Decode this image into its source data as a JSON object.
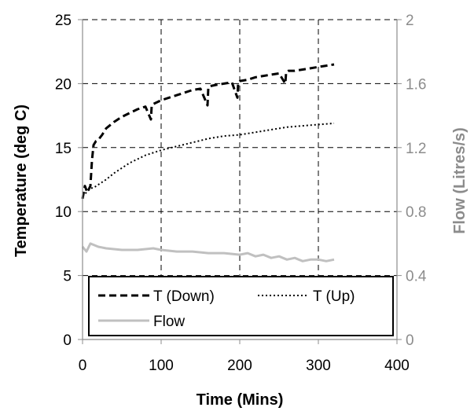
{
  "chart_data": {
    "type": "line",
    "xlabel": "Time (Mins)",
    "ylabel": "Temperature (deg C)",
    "y2label": "Flow (Litres/s)",
    "xlim": [
      0,
      400
    ],
    "ylim": [
      0,
      25
    ],
    "y2lim": [
      0,
      2
    ],
    "x_ticks": [
      "0",
      "100",
      "200",
      "300",
      "400"
    ],
    "y_ticks": [
      "0",
      "5",
      "10",
      "15",
      "20",
      "25"
    ],
    "y2_ticks": [
      "0",
      "0.4",
      "0.8",
      "1.2",
      "1.6",
      "2"
    ],
    "grid": true,
    "legend_position": "bottom-inside",
    "colors": {
      "t_down": "#000000",
      "t_up": "#000000",
      "flow": "#c0c0c0",
      "right_axis": "#8c8c8c"
    },
    "series": [
      {
        "name": "T (Down)",
        "axis": "left",
        "style": "dashed",
        "x": [
          0,
          3,
          6,
          10,
          12,
          14,
          17,
          20,
          25,
          30,
          40,
          50,
          60,
          70,
          80,
          87,
          88,
          90,
          100,
          110,
          120,
          130,
          140,
          150,
          159,
          160,
          162,
          170,
          180,
          190,
          197,
          198,
          200,
          210,
          220,
          230,
          240,
          250,
          258,
          259,
          262,
          270,
          280,
          290,
          300,
          310,
          320
        ],
        "y": [
          11.0,
          12.0,
          11.5,
          12.0,
          14.0,
          15.2,
          15.5,
          15.6,
          16.0,
          16.5,
          17.0,
          17.4,
          17.7,
          18.0,
          18.2,
          17.2,
          18.3,
          18.4,
          18.7,
          18.9,
          19.1,
          19.3,
          19.5,
          19.6,
          18.3,
          19.7,
          19.8,
          19.9,
          20.0,
          20.1,
          18.9,
          20.1,
          20.2,
          20.3,
          20.5,
          20.6,
          20.7,
          20.8,
          20.0,
          20.9,
          21.0,
          21.0,
          21.1,
          21.2,
          21.3,
          21.4,
          21.5
        ]
      },
      {
        "name": "T (Up)",
        "axis": "left",
        "style": "dotted",
        "x": [
          0,
          5,
          10,
          15,
          20,
          30,
          40,
          50,
          60,
          80,
          100,
          120,
          140,
          160,
          180,
          200,
          220,
          240,
          260,
          280,
          300,
          320
        ],
        "y": [
          11.2,
          11.5,
          11.8,
          11.9,
          12.1,
          12.5,
          13.0,
          13.4,
          13.8,
          14.4,
          14.8,
          15.1,
          15.4,
          15.7,
          15.9,
          16.0,
          16.2,
          16.4,
          16.6,
          16.7,
          16.8,
          16.9
        ]
      },
      {
        "name": "Flow",
        "axis": "right",
        "style": "solid",
        "x": [
          0,
          5,
          10,
          20,
          30,
          50,
          70,
          90,
          100,
          120,
          140,
          160,
          180,
          200,
          210,
          220,
          230,
          240,
          250,
          260,
          270,
          280,
          290,
          300,
          310,
          320
        ],
        "y": [
          0.58,
          0.55,
          0.6,
          0.58,
          0.57,
          0.56,
          0.56,
          0.57,
          0.56,
          0.55,
          0.55,
          0.54,
          0.54,
          0.53,
          0.54,
          0.52,
          0.53,
          0.51,
          0.52,
          0.5,
          0.51,
          0.49,
          0.5,
          0.5,
          0.49,
          0.5
        ]
      }
    ]
  }
}
